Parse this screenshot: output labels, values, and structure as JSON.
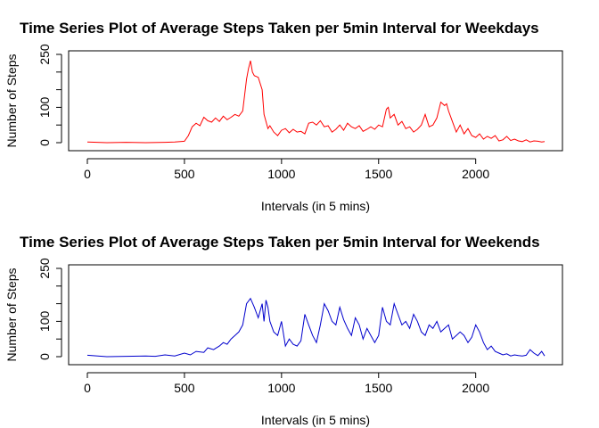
{
  "chart_data": [
    {
      "type": "line",
      "title": "Time Series Plot of Average Steps Taken per 5min Interval for Weekdays",
      "xlabel": "Intervals (in 5 mins)",
      "ylabel": "Number of Steps",
      "xlim": [
        0,
        2355
      ],
      "ylim": [
        0,
        250
      ],
      "x_ticks": [
        "0",
        "500",
        "1000",
        "1500",
        "2000"
      ],
      "y_ticks": [
        "0",
        "100",
        "250"
      ],
      "color": "#ff0000",
      "series": [
        {
          "x": [
            0,
            100,
            200,
            300,
            400,
            450,
            500,
            520,
            540,
            560,
            580,
            600,
            620,
            640,
            660,
            680,
            700,
            720,
            740,
            760,
            780,
            800,
            820,
            830,
            840,
            850,
            860,
            880,
            900,
            910,
            920,
            930,
            940,
            960,
            980,
            1000,
            1020,
            1040,
            1060,
            1080,
            1100,
            1120,
            1140,
            1160,
            1180,
            1200,
            1220,
            1240,
            1260,
            1280,
            1300,
            1320,
            1340,
            1360,
            1380,
            1400,
            1420,
            1440,
            1460,
            1480,
            1500,
            1520,
            1540,
            1550,
            1560,
            1580,
            1600,
            1620,
            1640,
            1660,
            1680,
            1700,
            1720,
            1740,
            1760,
            1780,
            1800,
            1820,
            1840,
            1850,
            1860,
            1880,
            1900,
            1920,
            1940,
            1960,
            1980,
            2000,
            2020,
            2040,
            2060,
            2080,
            2100,
            2120,
            2140,
            2160,
            2180,
            2200,
            2220,
            2240,
            2260,
            2280,
            2300,
            2320,
            2340,
            2355
          ],
          "y": [
            2,
            0,
            1,
            0,
            1,
            2,
            4,
            20,
            45,
            55,
            48,
            72,
            62,
            58,
            70,
            60,
            75,
            65,
            72,
            80,
            75,
            90,
            180,
            210,
            232,
            200,
            190,
            185,
            150,
            80,
            60,
            40,
            48,
            30,
            20,
            35,
            40,
            28,
            38,
            30,
            32,
            25,
            55,
            58,
            50,
            62,
            45,
            48,
            30,
            38,
            50,
            35,
            55,
            45,
            40,
            48,
            32,
            38,
            45,
            38,
            50,
            45,
            95,
            100,
            70,
            80,
            50,
            60,
            40,
            45,
            30,
            38,
            50,
            80,
            45,
            50,
            70,
            115,
            105,
            110,
            90,
            60,
            30,
            50,
            25,
            40,
            20,
            15,
            25,
            10,
            18,
            12,
            20,
            5,
            8,
            18,
            6,
            10,
            5,
            3,
            8,
            2,
            5,
            4,
            2,
            3
          ]
        }
      ]
    },
    {
      "type": "line",
      "title": "Time Series Plot of Average Steps Taken per 5min Interval for Weekends",
      "xlabel": "Intervals (in 5 mins)",
      "ylabel": "Number of Steps",
      "xlim": [
        0,
        2355
      ],
      "ylim": [
        0,
        250
      ],
      "x_ticks": [
        "0",
        "500",
        "1000",
        "1500",
        "2000"
      ],
      "y_ticks": [
        "0",
        "100",
        "250"
      ],
      "color": "#0000cd",
      "series": [
        {
          "x": [
            0,
            100,
            200,
            300,
            350,
            400,
            450,
            500,
            530,
            560,
            600,
            620,
            650,
            680,
            700,
            720,
            740,
            760,
            780,
            800,
            820,
            840,
            860,
            880,
            900,
            910,
            920,
            930,
            940,
            960,
            980,
            1000,
            1020,
            1040,
            1060,
            1080,
            1100,
            1120,
            1140,
            1160,
            1180,
            1200,
            1220,
            1240,
            1260,
            1280,
            1300,
            1320,
            1340,
            1360,
            1380,
            1400,
            1420,
            1440,
            1460,
            1480,
            1500,
            1520,
            1540,
            1560,
            1580,
            1600,
            1620,
            1640,
            1660,
            1680,
            1700,
            1720,
            1740,
            1760,
            1780,
            1800,
            1820,
            1840,
            1860,
            1880,
            1900,
            1920,
            1940,
            1960,
            1980,
            2000,
            2020,
            2040,
            2060,
            2080,
            2100,
            2120,
            2140,
            2160,
            2180,
            2200,
            2220,
            2240,
            2260,
            2280,
            2300,
            2320,
            2340,
            2355
          ],
          "y": [
            4,
            0,
            1,
            2,
            1,
            5,
            2,
            10,
            5,
            15,
            12,
            25,
            20,
            30,
            40,
            35,
            50,
            60,
            70,
            90,
            150,
            165,
            140,
            110,
            150,
            100,
            160,
            140,
            100,
            70,
            60,
            100,
            30,
            50,
            35,
            30,
            45,
            120,
            90,
            60,
            40,
            90,
            150,
            130,
            100,
            90,
            140,
            105,
            80,
            60,
            110,
            90,
            50,
            80,
            60,
            40,
            60,
            140,
            100,
            90,
            150,
            120,
            90,
            100,
            80,
            120,
            100,
            70,
            60,
            90,
            80,
            100,
            70,
            80,
            90,
            50,
            60,
            70,
            60,
            40,
            55,
            90,
            70,
            40,
            20,
            30,
            15,
            10,
            5,
            8,
            2,
            5,
            3,
            2,
            4,
            20,
            10,
            3,
            15,
            2
          ]
        }
      ]
    }
  ]
}
